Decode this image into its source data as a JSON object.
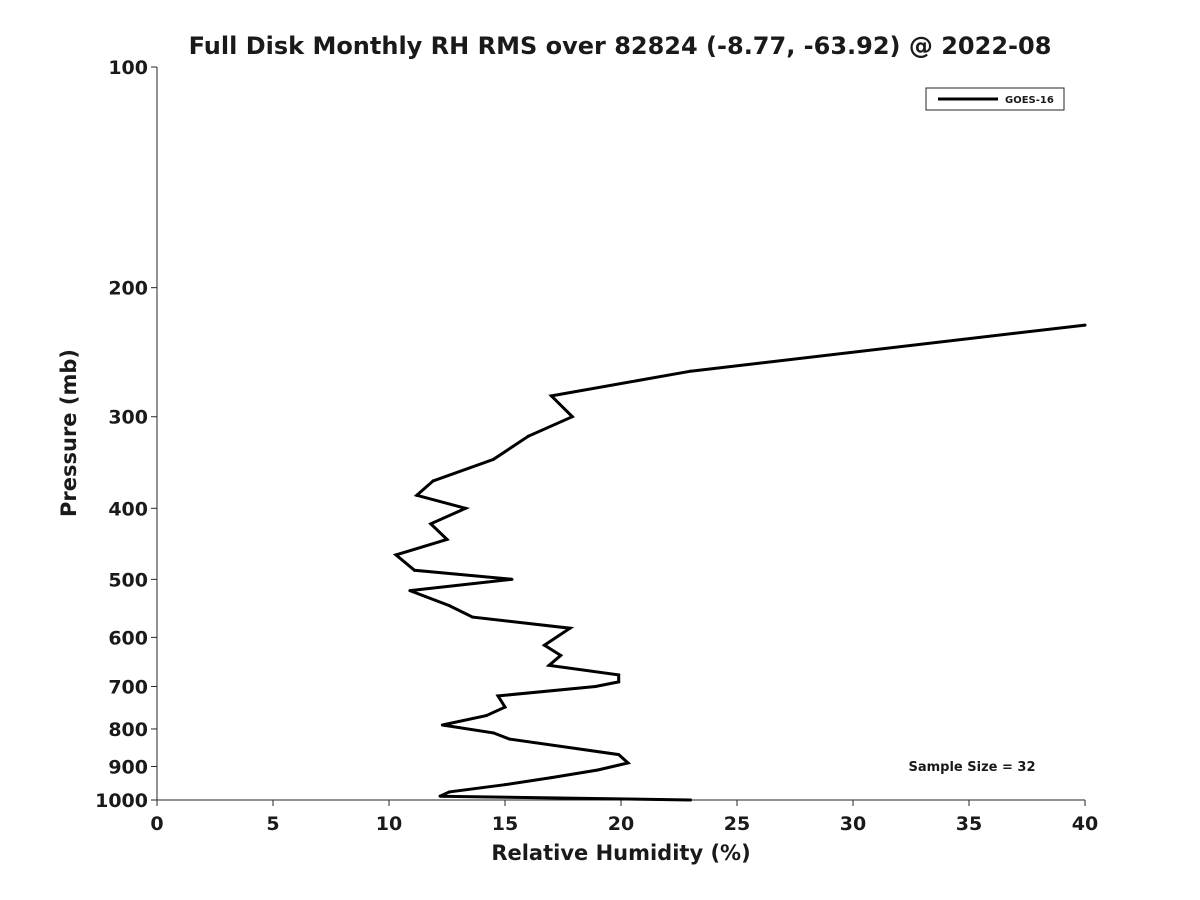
{
  "chart_data": {
    "type": "line",
    "title": "Full Disk Monthly RH RMS over 82824 (-8.77, -63.92) @ 2022-08",
    "xlabel": "Relative Humidity (%)",
    "ylabel": "Pressure (mb)",
    "xlim": [
      0,
      40
    ],
    "ylim": [
      100,
      1000
    ],
    "y_scale": "log",
    "y_inverted": true,
    "x_ticks": [
      0,
      5,
      10,
      15,
      20,
      25,
      30,
      35,
      40
    ],
    "y_ticks": [
      100,
      200,
      300,
      400,
      500,
      600,
      700,
      800,
      900,
      1000
    ],
    "grid": false,
    "legend_position": "top-right",
    "annotation": "Sample Size = 32",
    "series": [
      {
        "name": "GOES-16",
        "color": "#000000",
        "points": [
          {
            "rh": 40.0,
            "p": 225
          },
          {
            "rh": 23.0,
            "p": 260
          },
          {
            "rh": 17.0,
            "p": 281
          },
          {
            "rh": 17.9,
            "p": 300
          },
          {
            "rh": 16.0,
            "p": 319
          },
          {
            "rh": 14.5,
            "p": 343
          },
          {
            "rh": 11.9,
            "p": 367
          },
          {
            "rh": 11.2,
            "p": 384
          },
          {
            "rh": 13.3,
            "p": 400
          },
          {
            "rh": 11.8,
            "p": 420
          },
          {
            "rh": 12.5,
            "p": 441
          },
          {
            "rh": 10.3,
            "p": 463
          },
          {
            "rh": 11.1,
            "p": 486
          },
          {
            "rh": 15.3,
            "p": 500
          },
          {
            "rh": 10.9,
            "p": 518
          },
          {
            "rh": 12.6,
            "p": 543
          },
          {
            "rh": 13.6,
            "p": 563
          },
          {
            "rh": 17.8,
            "p": 583
          },
          {
            "rh": 16.7,
            "p": 615
          },
          {
            "rh": 17.4,
            "p": 635
          },
          {
            "rh": 16.9,
            "p": 655
          },
          {
            "rh": 19.9,
            "p": 675
          },
          {
            "rh": 19.9,
            "p": 690
          },
          {
            "rh": 18.9,
            "p": 700
          },
          {
            "rh": 14.7,
            "p": 721
          },
          {
            "rh": 15.0,
            "p": 747
          },
          {
            "rh": 14.2,
            "p": 767
          },
          {
            "rh": 12.3,
            "p": 790
          },
          {
            "rh": 14.5,
            "p": 810
          },
          {
            "rh": 15.2,
            "p": 826
          },
          {
            "rh": 19.9,
            "p": 867
          },
          {
            "rh": 20.3,
            "p": 890
          },
          {
            "rh": 19.0,
            "p": 910
          },
          {
            "rh": 17.0,
            "p": 932
          },
          {
            "rh": 15.0,
            "p": 953
          },
          {
            "rh": 12.6,
            "p": 975
          },
          {
            "rh": 12.2,
            "p": 988
          },
          {
            "rh": 23.0,
            "p": 1000
          }
        ]
      }
    ]
  }
}
